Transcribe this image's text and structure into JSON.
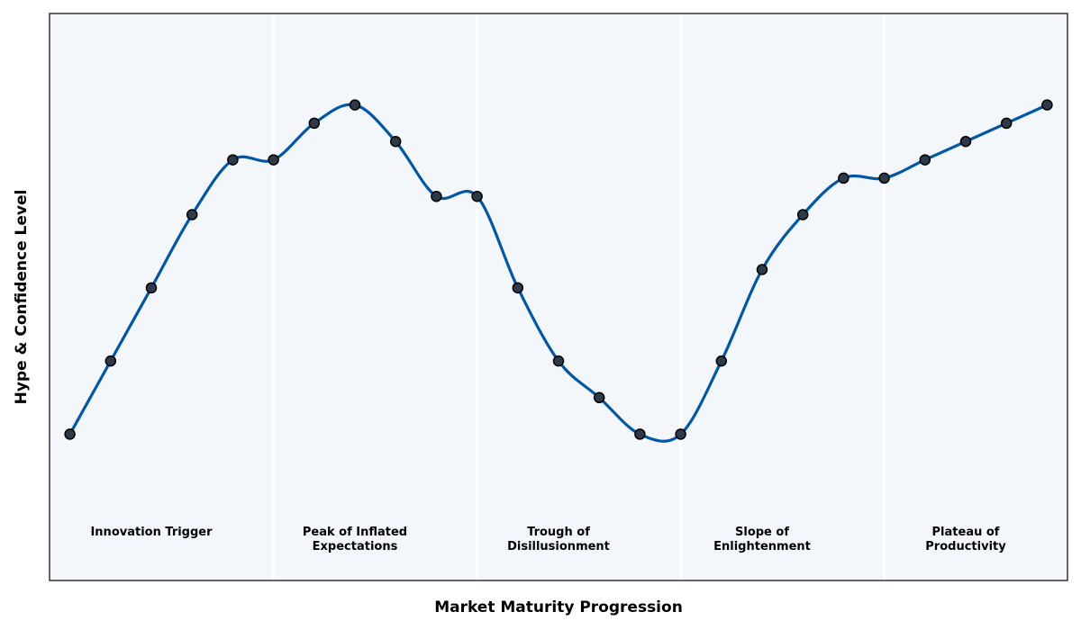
{
  "chart_data": {
    "type": "line",
    "xlabel": "Market Maturity Progression",
    "ylabel": "Hype & Confidence Level",
    "xlim": [
      -0.5,
      24.5
    ],
    "ylim": [
      0,
      31
    ],
    "grid": false,
    "legend": "none",
    "colors": {
      "line": "#0057A8",
      "marker_fill": "#2E3A4A",
      "marker_edge": "#000000",
      "plot_bg": "#F3F7FB",
      "divider": "#FFFFFF",
      "frame": "#333333"
    },
    "phase_boundaries": [
      5,
      10,
      15,
      20
    ],
    "phases": [
      {
        "label_lines": [
          "Innovation Trigger"
        ],
        "center": 2
      },
      {
        "label_lines": [
          "Peak of Inflated",
          "Expectations"
        ],
        "center": 7
      },
      {
        "label_lines": [
          "Trough of",
          "Disillusionment"
        ],
        "center": 12
      },
      {
        "label_lines": [
          "Slope of",
          "Enlightenment"
        ],
        "center": 17
      },
      {
        "label_lines": [
          "Plateau of",
          "Productivity"
        ],
        "center": 22
      }
    ],
    "series": [
      {
        "x": [
          0,
          1,
          2,
          3,
          4,
          5,
          6,
          7,
          8,
          9,
          10,
          11,
          12,
          13,
          14,
          15,
          16,
          17,
          18,
          19,
          20,
          21,
          22,
          23,
          24
        ],
        "values": [
          8,
          12,
          16,
          20,
          23,
          23,
          25,
          26,
          24,
          21,
          21,
          16,
          12,
          10,
          8,
          8,
          12,
          17,
          20,
          22,
          22,
          23,
          24,
          25,
          26
        ]
      }
    ]
  }
}
